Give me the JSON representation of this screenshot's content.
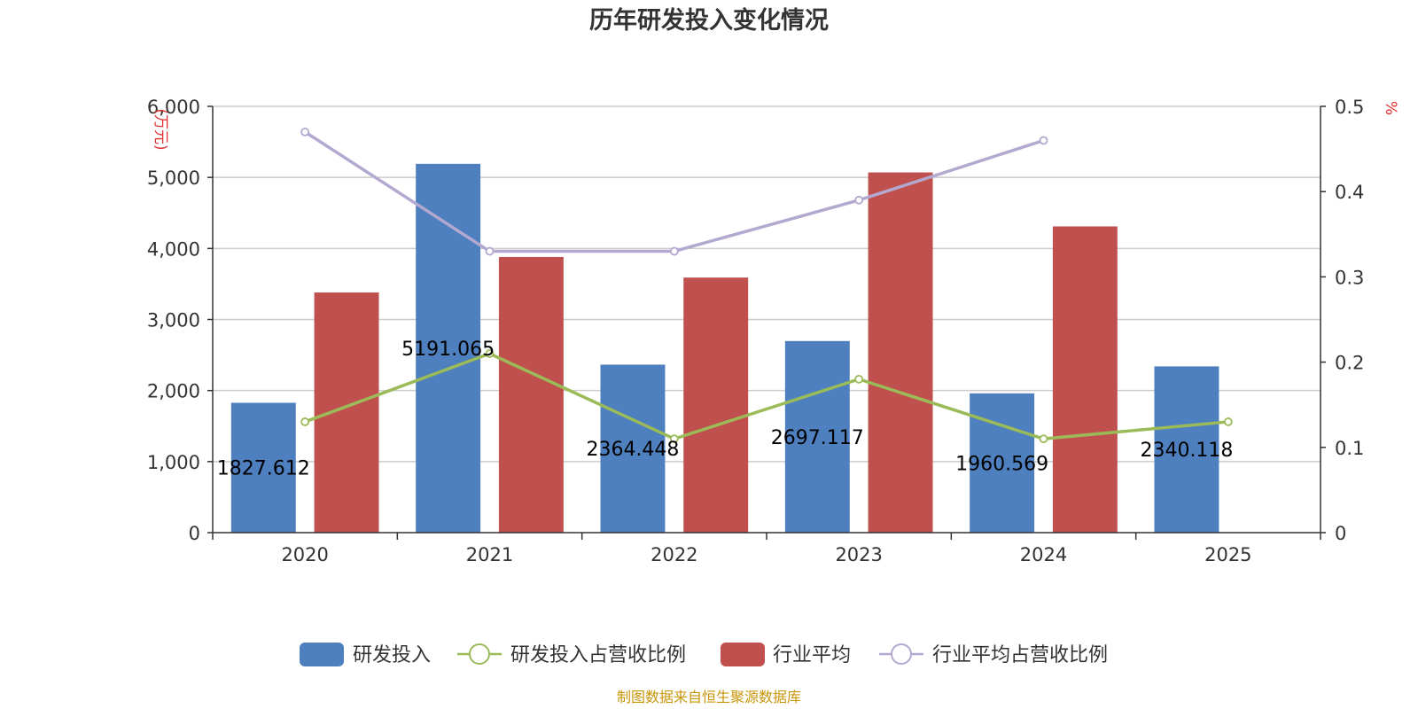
{
  "chart_data": {
    "type": "bar+line",
    "title": "历年研发投入变化情况",
    "categories": [
      "2020",
      "2021",
      "2022",
      "2023",
      "2024",
      "2025"
    ],
    "y_left": {
      "unit": "(万元)",
      "ylim": [
        0,
        6000
      ],
      "ticks": [
        "0",
        "1,000",
        "2,000",
        "3,000",
        "4,000",
        "5,000",
        "6,000"
      ],
      "tick_values": [
        0,
        1000,
        2000,
        3000,
        4000,
        5000,
        6000
      ]
    },
    "y_right": {
      "unit": "%",
      "ylim": [
        0,
        0.5
      ],
      "ticks": [
        "0",
        "0.1",
        "0.2",
        "0.3",
        "0.4",
        "0.5"
      ],
      "tick_values": [
        0,
        0.1,
        0.2,
        0.3,
        0.4,
        0.5
      ]
    },
    "series": [
      {
        "name": "研发投入",
        "kind": "bar",
        "axis": "left",
        "color": "#4e7fbe",
        "values": [
          1827.612,
          5191.065,
          2364.448,
          2697.117,
          1960.569,
          2340.118
        ],
        "labels": [
          "1827.612",
          "5191.065",
          "2364.448",
          "2697.117",
          "1960.569",
          "2340.118"
        ]
      },
      {
        "name": "研发投入占营收比例",
        "kind": "line",
        "axis": "right",
        "color": "#9bbb59",
        "values": [
          0.13,
          0.21,
          0.11,
          0.18,
          0.11,
          0.13
        ]
      },
      {
        "name": "行业平均",
        "kind": "bar",
        "axis": "left",
        "color": "#c0504d",
        "values": [
          3380,
          3880,
          3590,
          5070,
          4310,
          null
        ]
      },
      {
        "name": "行业平均占营收比例",
        "kind": "line",
        "axis": "right",
        "color": "#b3a8d0",
        "values": [
          0.47,
          0.33,
          0.33,
          0.39,
          0.46,
          null
        ]
      }
    ],
    "source": "制图数据来自恒生聚源数据库"
  }
}
